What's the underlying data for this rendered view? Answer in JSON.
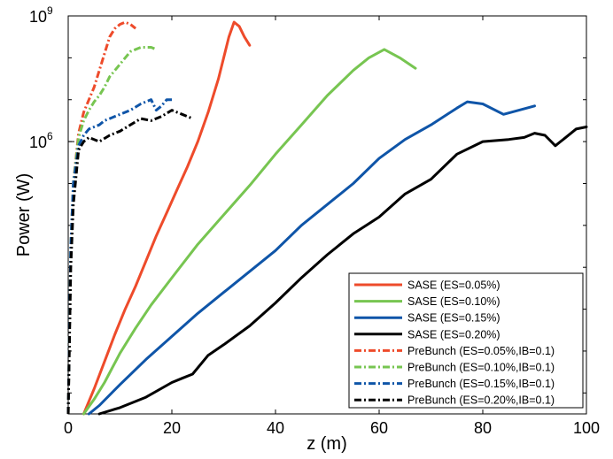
{
  "chart_data": {
    "type": "line",
    "xlabel": "z (m)",
    "ylabel": "Power (W)",
    "xlim": [
      0,
      100
    ],
    "ylim_log10": [
      -0.5,
      9
    ],
    "y_scale": "log",
    "grid": false,
    "legend_placement": "bottom-right",
    "x_ticks": [
      {
        "value": 0,
        "label": "0"
      },
      {
        "value": 20,
        "label": "20"
      },
      {
        "value": 40,
        "label": "40"
      },
      {
        "value": 60,
        "label": "60"
      },
      {
        "value": 80,
        "label": "80"
      },
      {
        "value": 100,
        "label": "100"
      }
    ],
    "y_ticks": [
      {
        "exp": 6,
        "base": "10",
        "power": "6"
      },
      {
        "exp": 9,
        "base": "10",
        "power": "9"
      }
    ],
    "series": [
      {
        "name": "SASE (ES=0.05%)",
        "color": "#ee4b2b",
        "dash": "solid",
        "x": [
          3,
          5,
          7,
          9,
          11,
          13,
          15,
          17,
          19,
          21,
          23,
          25,
          27,
          29,
          30,
          31,
          32,
          33,
          34,
          35
        ],
        "log10_y": [
          -0.5,
          0.1,
          0.75,
          1.4,
          2.0,
          2.55,
          3.15,
          3.75,
          4.3,
          4.85,
          5.4,
          6.0,
          6.7,
          7.5,
          8.0,
          8.5,
          8.85,
          8.75,
          8.5,
          8.3
        ]
      },
      {
        "name": "SASE (ES=0.10%)",
        "color": "#77c551",
        "dash": "solid",
        "x": [
          3,
          5,
          7,
          10,
          13,
          16,
          20,
          25,
          30,
          35,
          40,
          45,
          50,
          55,
          58,
          61,
          64,
          67
        ],
        "log10_y": [
          -0.5,
          -0.15,
          0.25,
          0.95,
          1.55,
          2.1,
          2.75,
          3.55,
          4.25,
          4.95,
          5.7,
          6.4,
          7.1,
          7.7,
          8.0,
          8.2,
          8.0,
          7.75
        ]
      },
      {
        "name": "SASE (ES=0.15%)",
        "color": "#0f55a8",
        "dash": "solid",
        "x": [
          4,
          6,
          10,
          15,
          20,
          25,
          30,
          35,
          40,
          45,
          50,
          55,
          60,
          65,
          70,
          75,
          77,
          80,
          84,
          90
        ],
        "log10_y": [
          -0.5,
          -0.3,
          0.2,
          0.8,
          1.35,
          1.9,
          2.4,
          2.9,
          3.4,
          4.0,
          4.5,
          5.0,
          5.6,
          6.05,
          6.4,
          6.8,
          6.95,
          6.9,
          6.65,
          6.85
        ]
      },
      {
        "name": "SASE (ES=0.20%)",
        "color": "#000000",
        "dash": "solid",
        "x": [
          6,
          10,
          15,
          20,
          22,
          24,
          27,
          30,
          35,
          40,
          45,
          50,
          55,
          60,
          65,
          70,
          75,
          80,
          85,
          88,
          90,
          92,
          94,
          96,
          98,
          100
        ],
        "log10_y": [
          -0.5,
          -0.35,
          -0.1,
          0.25,
          0.35,
          0.45,
          0.9,
          1.15,
          1.6,
          2.15,
          2.75,
          3.3,
          3.8,
          4.2,
          4.75,
          5.1,
          5.7,
          6.0,
          6.05,
          6.1,
          6.2,
          6.15,
          5.9,
          6.1,
          6.3,
          6.35
        ]
      },
      {
        "name": "PreBunch (ES=0.05%,IB=0.1)",
        "color": "#ee4b2b",
        "dash": "dashdot",
        "x": [
          0,
          0.5,
          1,
          2,
          3,
          4,
          5,
          6,
          7,
          8,
          9,
          10,
          11,
          12,
          13
        ],
        "log10_y": [
          -0.5,
          3.5,
          5.0,
          6.2,
          6.7,
          7.0,
          7.3,
          7.7,
          8.1,
          8.5,
          8.7,
          8.8,
          8.85,
          8.8,
          8.7
        ]
      },
      {
        "name": "PreBunch (ES=0.10%,IB=0.1)",
        "color": "#77c551",
        "dash": "dashdot",
        "x": [
          0,
          0.5,
          1,
          2,
          3,
          4,
          5,
          6,
          7,
          8,
          9,
          10,
          11,
          12,
          13,
          14,
          15,
          16,
          17
        ],
        "log10_y": [
          -0.5,
          3.5,
          5.0,
          6.1,
          6.5,
          6.75,
          6.95,
          7.1,
          7.3,
          7.55,
          7.7,
          7.85,
          8.0,
          8.15,
          8.2,
          8.25,
          8.25,
          8.25,
          8.2
        ]
      },
      {
        "name": "PreBunch (ES=0.15%,IB=0.1)",
        "color": "#0f55a8",
        "dash": "dashdot",
        "x": [
          0,
          0.5,
          1,
          2,
          3,
          4,
          5,
          6,
          7,
          8,
          10,
          12,
          14,
          16,
          17,
          18,
          19,
          20
        ],
        "log10_y": [
          -0.5,
          3.5,
          5.0,
          5.9,
          6.15,
          6.3,
          6.35,
          6.4,
          6.5,
          6.55,
          6.65,
          6.75,
          6.9,
          7.0,
          6.75,
          6.85,
          7.0,
          7.0
        ]
      },
      {
        "name": "PreBunch (ES=0.20%,IB=0.1)",
        "color": "#000000",
        "dash": "dashdot",
        "x": [
          0,
          0.5,
          1,
          2,
          3,
          4,
          6,
          8,
          10,
          12,
          14,
          16,
          18,
          20,
          22,
          24
        ],
        "log10_y": [
          -0.5,
          3.0,
          4.5,
          5.8,
          6.0,
          6.1,
          6.0,
          6.15,
          6.25,
          6.4,
          6.55,
          6.5,
          6.6,
          6.75,
          6.65,
          6.55
        ]
      }
    ]
  }
}
